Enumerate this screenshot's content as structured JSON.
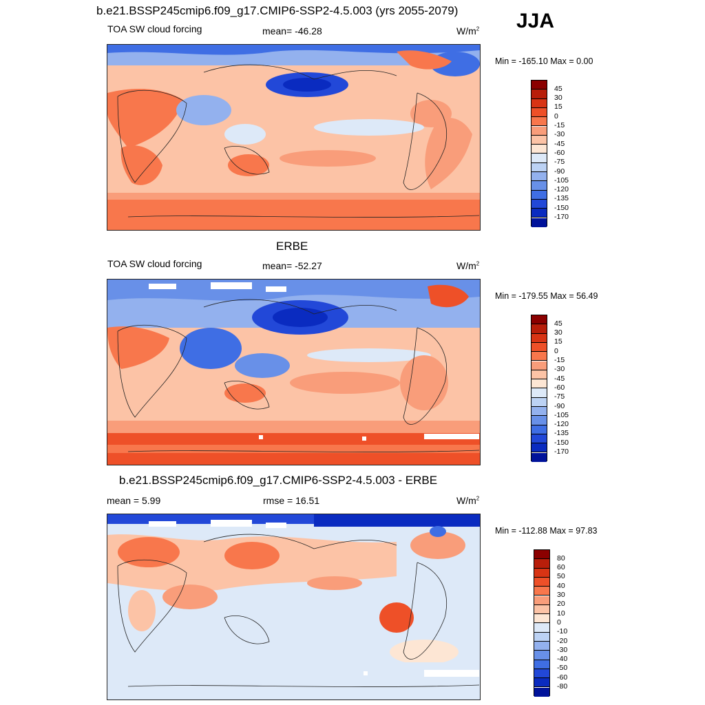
{
  "header": {
    "season": "JJA"
  },
  "panels": [
    {
      "title": "b.e21.BSSP245cmip6.f09_g17.CMIP6-SSP2-4.5.003 (yrs 2055-2079)",
      "left_label": "TOA SW cloud forcing",
      "center_label": "mean= -46.28",
      "units_base": "W/m",
      "units_sup": "2",
      "minmax": "Min = -165.10 Max =   0.00",
      "colorbar": {
        "labels": [
          "45",
          "30",
          "15",
          "0",
          "-15",
          "-30",
          "-45",
          "-60",
          "-75",
          "-90",
          "-105",
          "-120",
          "-135",
          "-150",
          "-170"
        ],
        "colors": [
          "#8b0000",
          "#b81e0a",
          "#d83414",
          "#ee5028",
          "#f8774c",
          "#f99d7a",
          "#fcc3a6",
          "#fde6d4",
          "#dde9f8",
          "#bcd2f4",
          "#93b1ee",
          "#6890e8",
          "#3f6ee4",
          "#2248d8",
          "#0a2bc0",
          "#00129a"
        ]
      }
    },
    {
      "title": "ERBE",
      "left_label": "TOA SW cloud forcing",
      "center_label": "mean= -52.27",
      "units_base": "W/m",
      "units_sup": "2",
      "minmax": "Min = -179.55 Max =  56.49",
      "colorbar": {
        "labels": [
          "45",
          "30",
          "15",
          "0",
          "-15",
          "-30",
          "-45",
          "-60",
          "-75",
          "-90",
          "-105",
          "-120",
          "-135",
          "-150",
          "-170"
        ],
        "colors": [
          "#8b0000",
          "#b81e0a",
          "#d83414",
          "#ee5028",
          "#f8774c",
          "#f99d7a",
          "#fcc3a6",
          "#fde6d4",
          "#dde9f8",
          "#bcd2f4",
          "#93b1ee",
          "#6890e8",
          "#3f6ee4",
          "#2248d8",
          "#0a2bc0",
          "#00129a"
        ]
      }
    },
    {
      "title": "b.e21.BSSP245cmip6.f09_g17.CMIP6-SSP2-4.5.003 - ERBE",
      "left_label": "mean =   5.99",
      "center_label": "rmse =  16.51",
      "units_base": "W/m",
      "units_sup": "2",
      "minmax": "Min = -112.88 Max =  97.83",
      "colorbar": {
        "labels": [
          "80",
          "60",
          "50",
          "40",
          "30",
          "20",
          "10",
          "0",
          "-10",
          "-20",
          "-30",
          "-40",
          "-50",
          "-60",
          "-80"
        ],
        "colors": [
          "#8b0000",
          "#b81e0a",
          "#d83414",
          "#ee5028",
          "#f8774c",
          "#f99d7a",
          "#fcc3a6",
          "#fde6d4",
          "#dde9f8",
          "#bcd2f4",
          "#93b1ee",
          "#6890e8",
          "#3f6ee4",
          "#2248d8",
          "#0a2bc0",
          "#00129a"
        ]
      }
    }
  ]
}
